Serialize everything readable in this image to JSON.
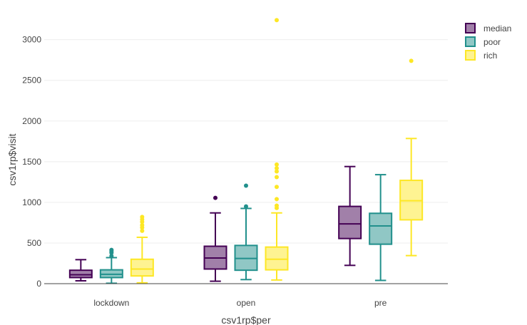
{
  "chart_data": {
    "type": "box",
    "xlabel": "csv1rp$per",
    "ylabel": "csv1rp$visit",
    "categories": [
      "lockdown",
      "open",
      "pre"
    ],
    "yticks": [
      0,
      500,
      1000,
      1500,
      2000,
      2500,
      3000
    ],
    "ylim": [
      0,
      3400
    ],
    "grid": true,
    "legend_position": "top-right",
    "series": [
      {
        "name": "median",
        "color": "#440154",
        "boxes": [
          {
            "category": "lockdown",
            "lower_whisker": 35,
            "q1": 75,
            "median": 110,
            "q3": 165,
            "upper_whisker": 295,
            "outliers": []
          },
          {
            "category": "open",
            "lower_whisker": 30,
            "q1": 180,
            "median": 315,
            "q3": 460,
            "upper_whisker": 870,
            "outliers": [
              1055
            ]
          },
          {
            "category": "pre",
            "lower_whisker": 225,
            "q1": 555,
            "median": 735,
            "q3": 950,
            "upper_whisker": 1440,
            "outliers": []
          }
        ]
      },
      {
        "name": "poor",
        "color": "#21908c",
        "boxes": [
          {
            "category": "lockdown",
            "lower_whisker": 5,
            "q1": 75,
            "median": 115,
            "q3": 170,
            "upper_whisker": 320,
            "outliers": [
              340,
              380,
              400,
              415
            ]
          },
          {
            "category": "open",
            "lower_whisker": 50,
            "q1": 165,
            "median": 310,
            "q3": 470,
            "upper_whisker": 925,
            "outliers": [
              950,
              1205
            ]
          },
          {
            "category": "pre",
            "lower_whisker": 40,
            "q1": 485,
            "median": 710,
            "q3": 865,
            "upper_whisker": 1340,
            "outliers": []
          }
        ]
      },
      {
        "name": "rich",
        "color": "#fde725",
        "boxes": [
          {
            "category": "lockdown",
            "lower_whisker": 10,
            "q1": 95,
            "median": 180,
            "q3": 300,
            "upper_whisker": 570,
            "outliers": [
              650,
              690,
              720,
              760,
              790,
              820
            ]
          },
          {
            "category": "open",
            "lower_whisker": 45,
            "q1": 170,
            "median": 300,
            "q3": 450,
            "upper_whisker": 870,
            "outliers": [
              930,
              960,
              1040,
              1190,
              1310,
              1380,
              1420,
              1465,
              3240
            ]
          },
          {
            "category": "pre",
            "lower_whisker": 345,
            "q1": 785,
            "median": 1020,
            "q3": 1270,
            "upper_whisker": 1785,
            "outliers": [
              2740
            ]
          }
        ]
      }
    ]
  }
}
